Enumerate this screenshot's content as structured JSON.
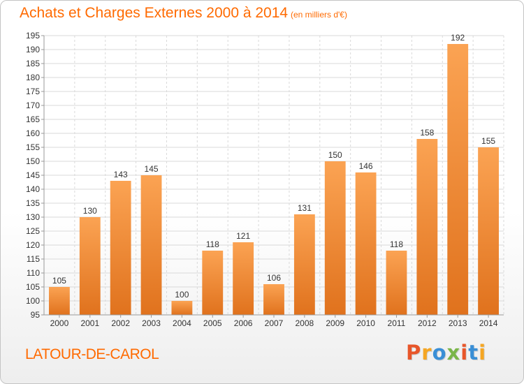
{
  "header": {
    "title": "Achats et Charges Externes 2000 à 2014",
    "unit_note": "(en milliers d'€)"
  },
  "footer": {
    "commune": "LATOUR-DE-CAROL",
    "logo_text": "Proxiti",
    "logo_colors": [
      "#e8562a",
      "#f5a623",
      "#3a8fd6",
      "#7ab648",
      "#e8562a",
      "#3a8fd6",
      "#f5a623"
    ]
  },
  "colors": {
    "accent": "#ff6a00",
    "bar_top": "#fba353",
    "bar_bottom": "#e0721d",
    "grid": "#d9d9d9",
    "axis_text": "#333333"
  },
  "chart_data": {
    "type": "bar",
    "categories": [
      "2000",
      "2001",
      "2002",
      "2003",
      "2004",
      "2005",
      "2006",
      "2007",
      "2008",
      "2009",
      "2010",
      "2011",
      "2012",
      "2013",
      "2014"
    ],
    "values": [
      105,
      130,
      143,
      145,
      100,
      118,
      121,
      106,
      131,
      150,
      146,
      118,
      158,
      192,
      155
    ],
    "ylim": [
      95,
      195
    ],
    "yticks": [
      95,
      100,
      105,
      110,
      115,
      120,
      125,
      130,
      135,
      140,
      145,
      150,
      155,
      160,
      165,
      170,
      175,
      180,
      185,
      190,
      195
    ],
    "grid": true,
    "data_labels": true
  }
}
